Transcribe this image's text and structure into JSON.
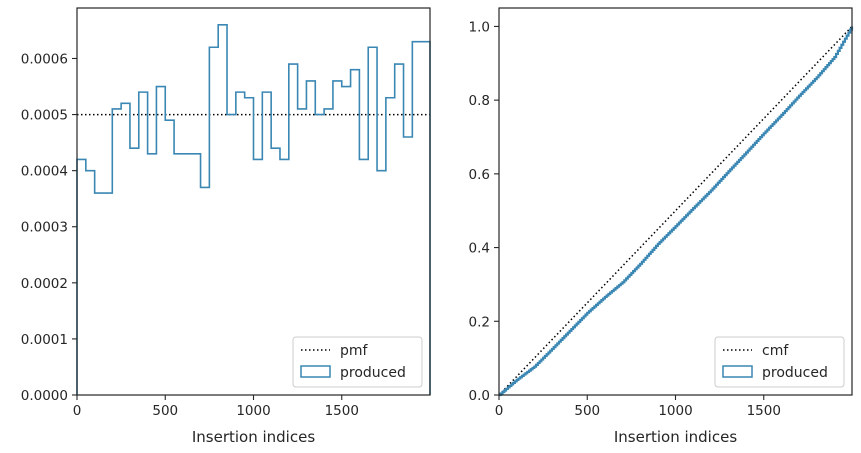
{
  "colors": {
    "produced": "#3a87b4",
    "reference": "#000000",
    "axes": "#262626"
  },
  "chart_data": [
    {
      "type": "histogram",
      "title": "",
      "xlabel": "Insertion indices",
      "ylabel": "",
      "xlim": [
        0,
        2000
      ],
      "ylim": [
        0,
        0.00069
      ],
      "xticks": [
        0,
        500,
        1000,
        1500
      ],
      "xtick_labels": [
        "0",
        "500",
        "1000",
        "1500"
      ],
      "yticks": [
        0,
        0.0001,
        0.0002,
        0.0003,
        0.0004,
        0.0005,
        0.0006
      ],
      "ytick_labels": [
        "0.0000",
        "0.0001",
        "0.0002",
        "0.0003",
        "0.0004",
        "0.0005",
        "0.0006"
      ],
      "grid": false,
      "legend_position": "lower right",
      "reference_line": {
        "name": "pmf",
        "value": 0.0005,
        "style": "dotted"
      },
      "series": [
        {
          "name": "produced",
          "style": "step",
          "bin_width": 50,
          "values": [
            0.00042,
            0.0004,
            0.00036,
            0.00036,
            0.00051,
            0.00052,
            0.00044,
            0.00054,
            0.00043,
            0.00055,
            0.00049,
            0.00043,
            0.00043,
            0.00043,
            0.00037,
            0.00062,
            0.00066,
            0.0005,
            0.00054,
            0.00053,
            0.00042,
            0.00054,
            0.00044,
            0.00042,
            0.00059,
            0.00051,
            0.00056,
            0.0005,
            0.00051,
            0.00056,
            0.00055,
            0.00058,
            0.00042,
            0.00062,
            0.0004,
            0.00053,
            0.00059,
            0.00046,
            0.00063,
            0.00063
          ]
        }
      ],
      "legend": [
        "pmf",
        "produced"
      ]
    },
    {
      "type": "line",
      "title": "",
      "xlabel": "Insertion indices",
      "ylabel": "",
      "xlim": [
        0,
        2000
      ],
      "ylim": [
        0,
        1.05
      ],
      "xticks": [
        0,
        500,
        1000,
        1500
      ],
      "xtick_labels": [
        "0",
        "500",
        "1000",
        "1500"
      ],
      "yticks": [
        0,
        0.2,
        0.4,
        0.6,
        0.8,
        1.0
      ],
      "ytick_labels": [
        "0.0",
        "0.2",
        "0.4",
        "0.6",
        "0.8",
        "1.0"
      ],
      "grid": false,
      "legend_position": "lower right",
      "series": [
        {
          "name": "cmf",
          "style": "dotted",
          "x": [
            0,
            2000
          ],
          "y": [
            0,
            1.0
          ]
        },
        {
          "name": "produced",
          "style": "step",
          "x": [
            0,
            100,
            200,
            300,
            400,
            500,
            600,
            700,
            800,
            900,
            1000,
            1100,
            1200,
            1300,
            1400,
            1500,
            1600,
            1700,
            1800,
            1900,
            2000
          ],
          "y": [
            0,
            0.041,
            0.077,
            0.125,
            0.174,
            0.223,
            0.266,
            0.306,
            0.356,
            0.41,
            0.458,
            0.507,
            0.555,
            0.607,
            0.658,
            0.71,
            0.76,
            0.812,
            0.862,
            0.917,
            1.0
          ]
        }
      ],
      "legend": [
        "cmf",
        "produced"
      ]
    }
  ]
}
